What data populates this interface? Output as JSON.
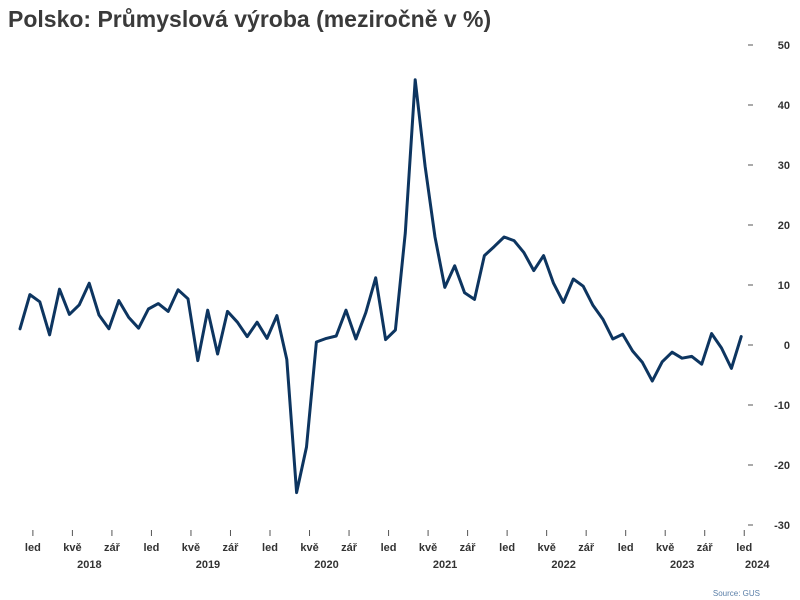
{
  "header": {
    "title": "Polsko: Průmyslová výroba (meziročně v %)"
  },
  "footer": {
    "source": "Source: GUS"
  },
  "chart_data": {
    "type": "line",
    "title": "Polsko: Průmyslová výroba (meziročně v %)",
    "xlabel": "",
    "ylabel": "",
    "ylim": [
      -30,
      50
    ],
    "y_ticks": [
      50,
      40,
      30,
      20,
      10,
      0,
      -10,
      -20,
      -30
    ],
    "y_axis_position": "right",
    "grid": false,
    "month_labels": [
      {
        "label": "led",
        "date": "2018-01"
      },
      {
        "label": "kvě",
        "date": "2018-05"
      },
      {
        "label": "zář",
        "date": "2018-09"
      },
      {
        "label": "led",
        "date": "2019-01"
      },
      {
        "label": "kvě",
        "date": "2019-05"
      },
      {
        "label": "zář",
        "date": "2019-09"
      },
      {
        "label": "led",
        "date": "2020-01"
      },
      {
        "label": "kvě",
        "date": "2020-05"
      },
      {
        "label": "zář",
        "date": "2020-09"
      },
      {
        "label": "led",
        "date": "2021-01"
      },
      {
        "label": "kvě",
        "date": "2021-05"
      },
      {
        "label": "zář",
        "date": "2021-09"
      },
      {
        "label": "led",
        "date": "2022-01"
      },
      {
        "label": "kvě",
        "date": "2022-05"
      },
      {
        "label": "zář",
        "date": "2022-09"
      },
      {
        "label": "led",
        "date": "2023-01"
      },
      {
        "label": "kvě",
        "date": "2023-05"
      },
      {
        "label": "zář",
        "date": "2023-09"
      },
      {
        "label": "led",
        "date": "2024-01"
      }
    ],
    "year_labels": [
      "2018",
      "2019",
      "2020",
      "2021",
      "2022",
      "2023",
      "2024"
    ],
    "line_color": "#0d3560",
    "series": [
      {
        "x": [
          "2017-12",
          "2018-01",
          "2018-02",
          "2018-03",
          "2018-04",
          "2018-05",
          "2018-06",
          "2018-07",
          "2018-08",
          "2018-09",
          "2018-10",
          "2018-11",
          "2018-12",
          "2019-01",
          "2019-02",
          "2019-03",
          "2019-04",
          "2019-05",
          "2019-06",
          "2019-07",
          "2019-08",
          "2019-09",
          "2019-10",
          "2019-11",
          "2019-12",
          "2020-01",
          "2020-02",
          "2020-03",
          "2020-04",
          "2020-05",
          "2020-06",
          "2020-07",
          "2020-08",
          "2020-09",
          "2020-10",
          "2020-11",
          "2020-12",
          "2021-01",
          "2021-02",
          "2021-03",
          "2021-04",
          "2021-05",
          "2021-06",
          "2021-07",
          "2021-08",
          "2021-09",
          "2021-10",
          "2021-11",
          "2021-12",
          "2022-01",
          "2022-02",
          "2022-03",
          "2022-04",
          "2022-05",
          "2022-06",
          "2022-07",
          "2022-08",
          "2022-09",
          "2022-10",
          "2022-11",
          "2022-12",
          "2023-01",
          "2023-02",
          "2023-03",
          "2023-04",
          "2023-05",
          "2023-06",
          "2023-07",
          "2023-08",
          "2023-09",
          "2023-10",
          "2023-11",
          "2023-12",
          "2024-01"
        ],
        "values": [
          2.7,
          8.4,
          7.2,
          1.7,
          9.3,
          5.1,
          6.7,
          10.3,
          5.0,
          2.7,
          7.4,
          4.6,
          2.8,
          6.0,
          6.9,
          5.6,
          9.2,
          7.7,
          -2.6,
          5.8,
          -1.5,
          5.6,
          3.8,
          1.4,
          3.8,
          1.1,
          4.9,
          -2.4,
          -24.6,
          -17.0,
          0.5,
          1.1,
          1.5,
          5.8,
          1.0,
          5.4,
          11.2,
          0.9,
          2.5,
          18.7,
          44.2,
          29.8,
          18.0,
          9.6,
          13.2,
          8.7,
          7.6,
          14.9,
          16.4,
          18.0,
          17.4,
          15.4,
          12.4,
          14.9,
          10.3,
          7.1,
          11.0,
          9.8,
          6.6,
          4.3,
          1.0,
          1.8,
          -1.0,
          -2.9,
          -6.0,
          -2.8,
          -1.2,
          -2.2,
          -1.9,
          -3.2,
          1.9,
          -0.5,
          -3.9,
          1.4
        ]
      }
    ]
  }
}
